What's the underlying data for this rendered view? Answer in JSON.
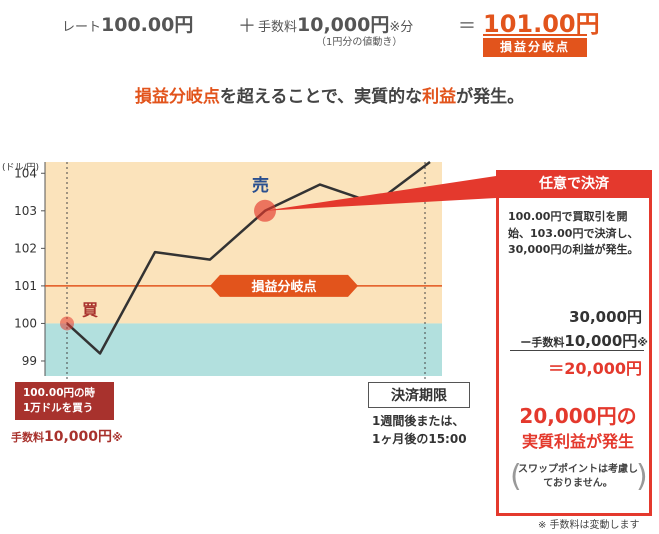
{
  "formula": {
    "rate_label": "レート",
    "rate_value": "100.00円",
    "plus": "＋",
    "fee_label": "手数料",
    "fee_value": "10,000円",
    "fee_suffix": "※分",
    "fee_note": "（1円分の値動き）",
    "equals": "＝",
    "result_value": "101.00円",
    "result_tag": "損益分岐点"
  },
  "tagline": {
    "highlight_1": "損益分岐点",
    "part_1": "を超えることで、実質的な",
    "highlight_2": "利益",
    "part_2": "が発生。"
  },
  "chart_data": {
    "type": "line",
    "ylabel": "(ドル/円)",
    "yticks": [
      99,
      100,
      101,
      102,
      103,
      104
    ],
    "ylim": [
      98.6,
      104.3
    ],
    "points": [
      {
        "x": 0,
        "y": 100.0
      },
      {
        "x": 1,
        "y": 99.2
      },
      {
        "x": 2,
        "y": 101.9
      },
      {
        "x": 3,
        "y": 101.7
      },
      {
        "x": 4,
        "y": 103.0
      },
      {
        "x": 5,
        "y": 103.7
      },
      {
        "x": 6,
        "y": 103.2
      },
      {
        "x": 7,
        "y": 104.3
      }
    ],
    "breakeven": 101,
    "breakeven_label": "損益分岐点",
    "buy_label": "買",
    "sell_label": "売",
    "colors": {
      "profit_zone": "#fbe3bb",
      "loss_zone": "#b2e0de",
      "breakeven_line": "#e2541c",
      "line": "#333333",
      "marker": "#e4392d"
    }
  },
  "buy_note": {
    "line1": "100.00円の時",
    "line2": "1万ドルを買う",
    "fee_label": "手数料",
    "fee_value": "10,000円",
    "fee_mark": "※"
  },
  "deadline": {
    "title": "決済期限",
    "line1": "1週間後または、",
    "line2": "1ヶ月後の15:00"
  },
  "panel": {
    "head": "任意で決済",
    "desc": "100.00円で買取引を開始、103.00円で決済し、30,000円の利益が発生。",
    "line1": "30,000円",
    "line2_prefix": "ー手数料",
    "line2_value": "10,000円",
    "line2_mark": "※",
    "result": "＝20,000円",
    "profit_value": "20,000円の",
    "profit_label": "実質利益が発生",
    "swap_note": "スワップポイントは考慮しておりません。"
  },
  "footnote": "※ 手数料は変動します"
}
